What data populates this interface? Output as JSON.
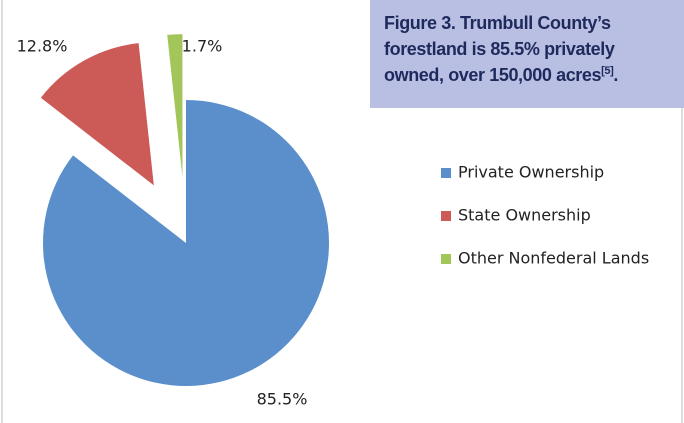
{
  "chart_data": {
    "type": "pie",
    "title": "Figure 3. Trumbull County’s forestland is 85.5% privately owned, over 150,000 acres",
    "title_reference": "[5]",
    "title_end": ".",
    "categories": [
      "Private Ownership",
      "State Ownership",
      "Other Nonfederal Lands"
    ],
    "values": [
      85.5,
      12.8,
      1.7
    ],
    "value_labels": [
      "85.5%",
      "12.8%",
      "1.7%"
    ],
    "colors": [
      "#5b8fcb",
      "#cc5a57",
      "#a3c65b"
    ],
    "legend": "right"
  }
}
